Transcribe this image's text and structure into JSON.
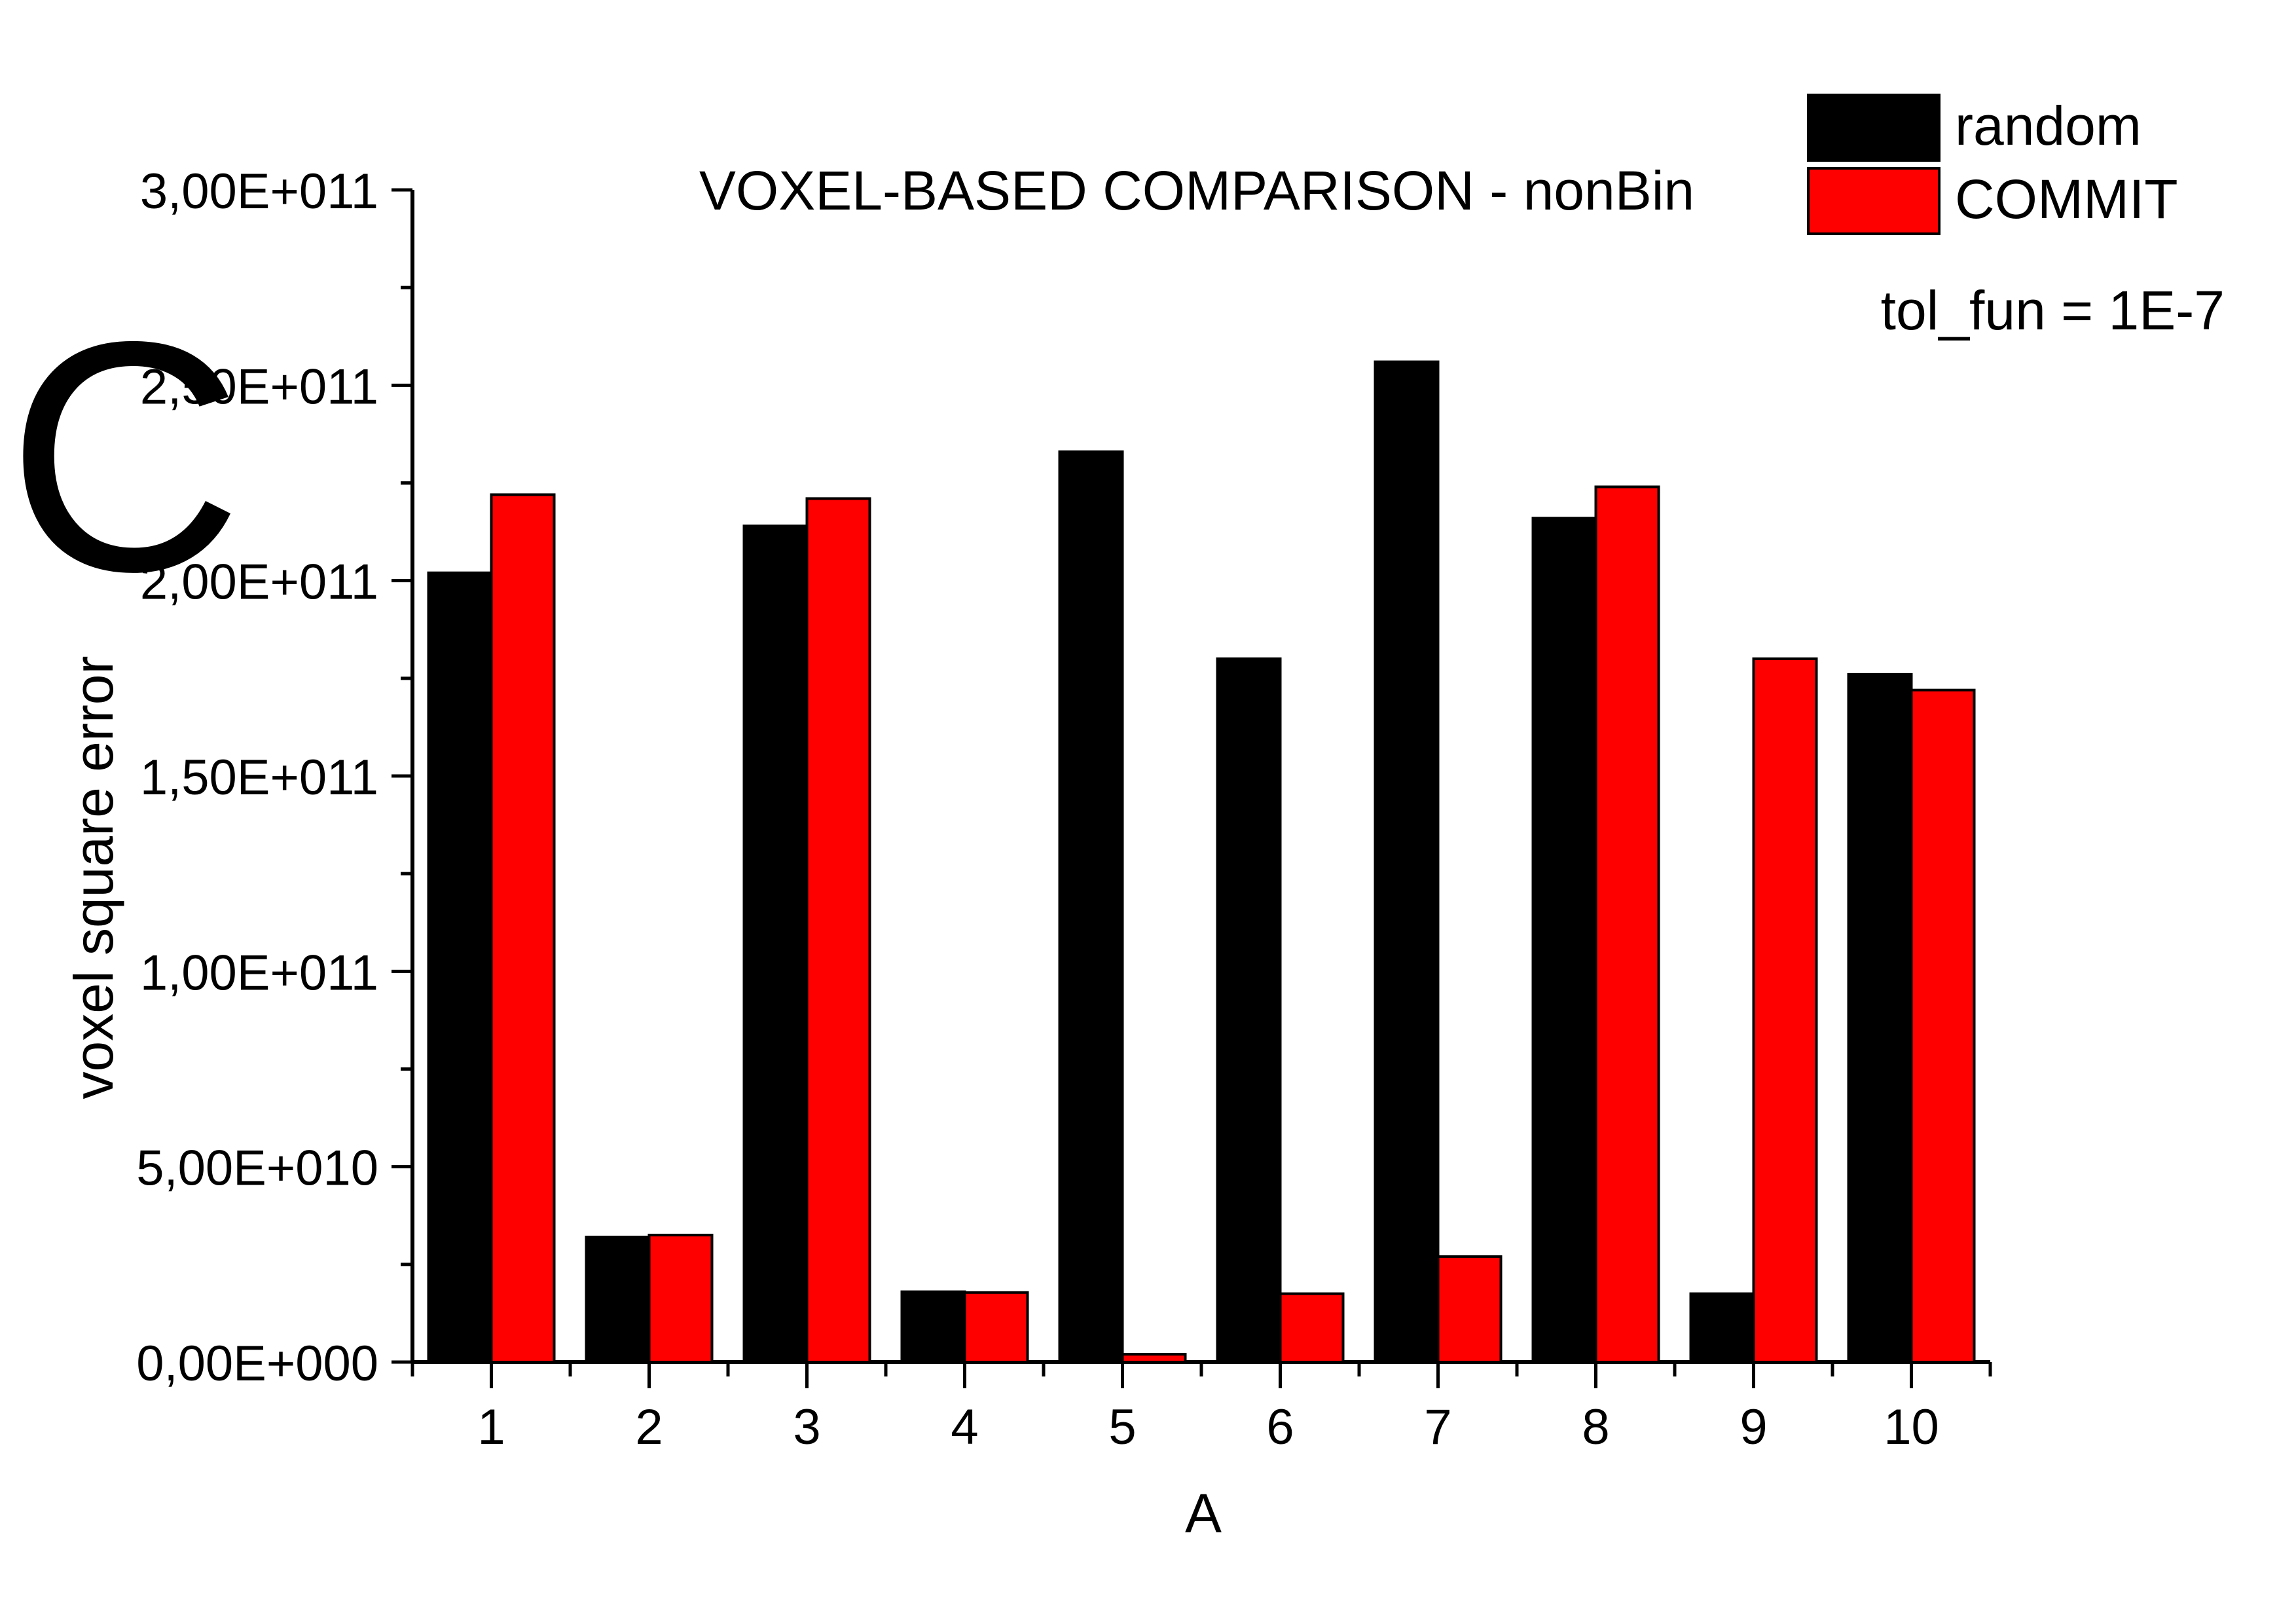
{
  "panel_letter": "C",
  "chart_data": {
    "type": "bar",
    "title": "VOXEL-BASED COMPARISON - nonBin",
    "annotation": "tol_fun = 1E-7",
    "xlabel": "A",
    "ylabel": "voxel square error",
    "ylim": [
      0,
      300000000000
    ],
    "ytick_values": [
      0,
      50000000000,
      100000000000,
      150000000000,
      200000000000,
      250000000000,
      300000000000
    ],
    "ytick_labels": [
      "0,00E+000",
      "5,00E+010",
      "1,00E+011",
      "1,50E+011",
      "2,00E+011",
      "2,50E+011",
      "3,00E+011"
    ],
    "categories": [
      "1",
      "2",
      "3",
      "4",
      "5",
      "6",
      "7",
      "8",
      "9",
      "10"
    ],
    "series": [
      {
        "name": "random",
        "color": "#000000",
        "values": [
          202000000000,
          32000000000,
          214000000000,
          18000000000,
          233000000000,
          180000000000,
          256000000000,
          216000000000,
          17500000000,
          176000000000
        ]
      },
      {
        "name": "COMMIT",
        "color": "#ff0000",
        "values": [
          222000000000,
          32500000000,
          221000000000,
          17800000000,
          2000000000,
          17500000000,
          27000000000,
          224000000000,
          180000000000,
          172000000000
        ]
      }
    ],
    "legend_position": "top-right",
    "grid": false
  }
}
